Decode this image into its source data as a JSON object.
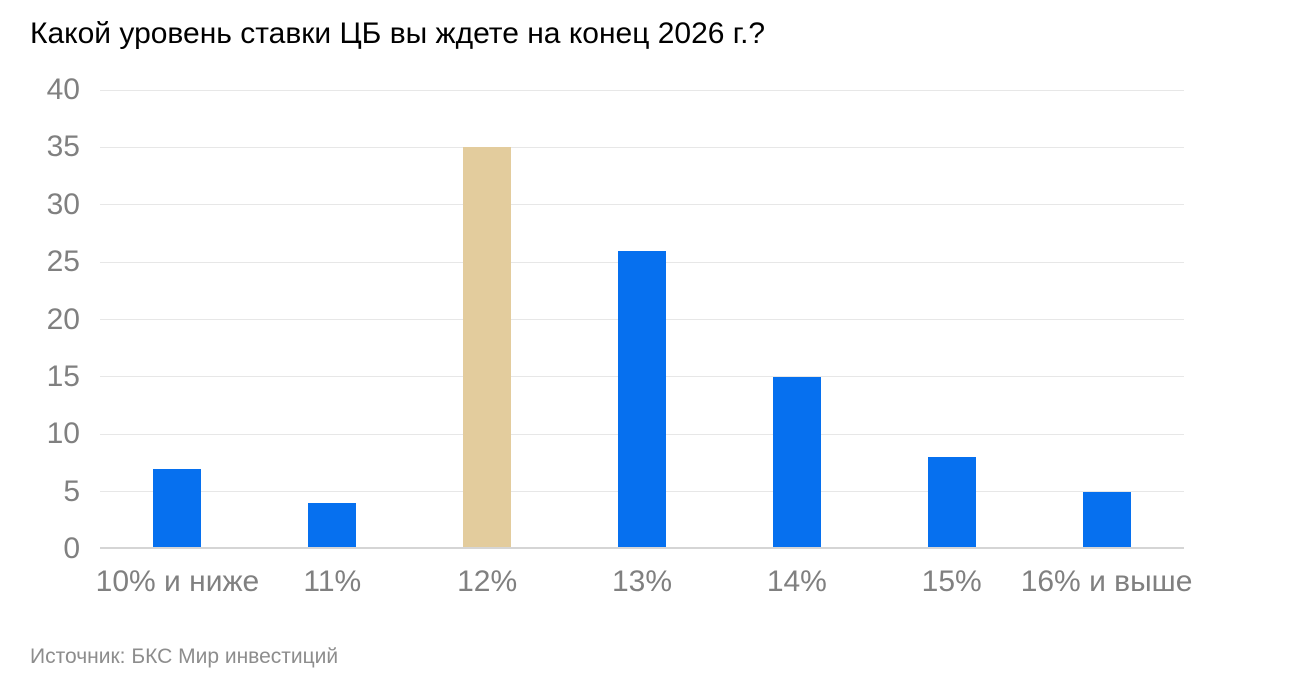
{
  "title": "Какой уровень ставки ЦБ вы ждете на конец 2026 г.?",
  "source": "Источник: БКС Мир инвестиций",
  "colors": {
    "bar_default": "#0670ef",
    "bar_highlight": "#e3cc9d",
    "grid": "#e7e7e7",
    "axis_line": "#d5d5d5",
    "tick_text": "#808080",
    "title_text": "#000000",
    "source_text": "#8d8d8d"
  },
  "chart_data": {
    "type": "bar",
    "title": "Какой уровень ставки ЦБ вы ждете на конец 2026 г.?",
    "categories": [
      "10% и ниже",
      "11%",
      "12%",
      "13%",
      "14%",
      "15%",
      "16% и выше"
    ],
    "values": [
      7,
      4,
      35,
      26,
      15,
      8,
      5
    ],
    "highlight_index": 2,
    "highlight_category": "12%",
    "xlabel": "",
    "ylabel": "",
    "ylim": [
      0,
      40
    ],
    "yticks": [
      0,
      5,
      10,
      15,
      20,
      25,
      30,
      35,
      40
    ],
    "grid": true,
    "legend": false,
    "source": "Источник: БКС Мир инвестиций"
  }
}
